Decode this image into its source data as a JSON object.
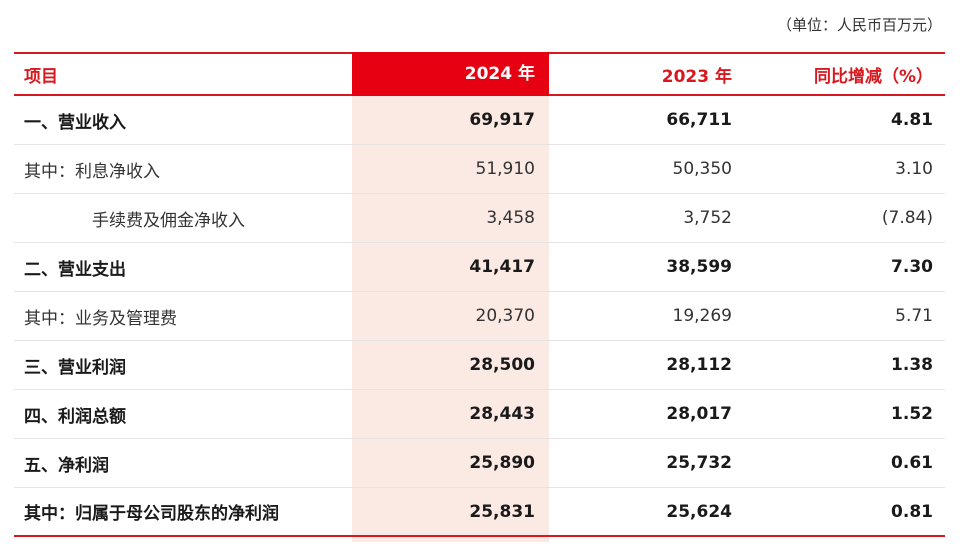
{
  "unit_note": "（单位：人民币百万元）",
  "header": {
    "item": "项目",
    "y2024": "2024 年",
    "y2023": "2023 年",
    "yoy": "同比增减（%）"
  },
  "rows": [
    {
      "label": "一、营业收入",
      "y2024": "69,917",
      "y2023": "66,711",
      "yoy": "4.81"
    },
    {
      "label": "其中：利息净收入",
      "y2024": "51,910",
      "y2023": "50,350",
      "yoy": "3.10"
    },
    {
      "label": "手续费及佣金净收入",
      "y2024": "3,458",
      "y2023": "3,752",
      "yoy": "(7.84)"
    },
    {
      "label": "二、营业支出",
      "y2024": "41,417",
      "y2023": "38,599",
      "yoy": "7.30"
    },
    {
      "label": "其中：业务及管理费",
      "y2024": "20,370",
      "y2023": "19,269",
      "yoy": "5.71"
    },
    {
      "label": "三、营业利润",
      "y2024": "28,500",
      "y2023": "28,112",
      "yoy": "1.38"
    },
    {
      "label": "四、利润总额",
      "y2024": "28,443",
      "y2023": "28,017",
      "yoy": "1.52"
    },
    {
      "label": "五、净利润",
      "y2024": "25,890",
      "y2023": "25,732",
      "yoy": "0.61"
    },
    {
      "label": "其中：归属于母公司股东的净利润",
      "y2024": "25,831",
      "y2023": "25,624",
      "yoy": "0.81"
    }
  ],
  "colors": {
    "accent_red": "#e60012",
    "highlight_column": "#fbe9e3"
  }
}
